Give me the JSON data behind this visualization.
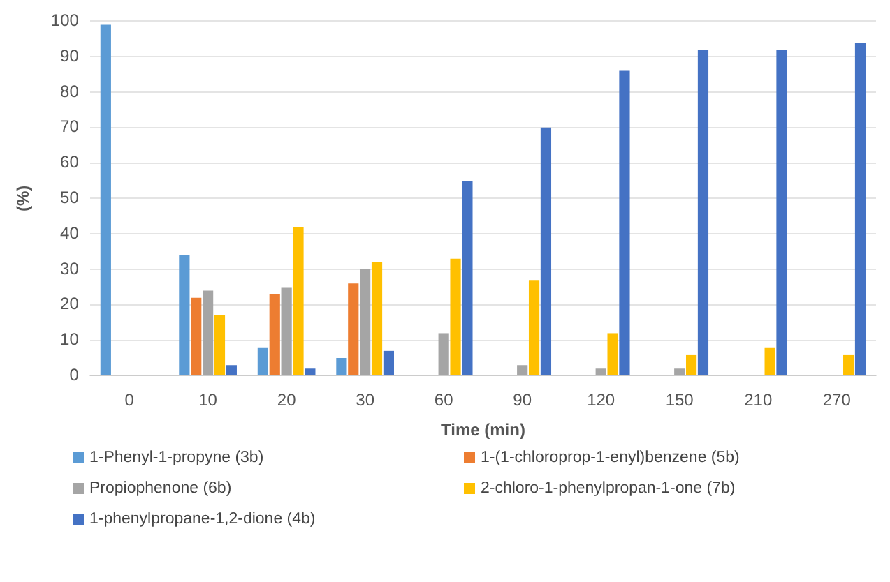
{
  "chart_data": {
    "type": "bar",
    "xlabel": "Time (min)",
    "ylabel": "(%)",
    "categories": [
      "0",
      "10",
      "20",
      "30",
      "60",
      "90",
      "120",
      "150",
      "210",
      "270"
    ],
    "series": [
      {
        "name": "1-Phenyl-1-propyne (3b)",
        "color": "#5b9bd5",
        "values": [
          99,
          34,
          8,
          5,
          0,
          0,
          0,
          0,
          0,
          0
        ]
      },
      {
        "name": "1-(1-chloroprop-1-enyl)benzene (5b)",
        "color": "#ed7d31",
        "values": [
          0,
          22,
          23,
          26,
          0,
          0,
          0,
          0,
          0,
          0
        ]
      },
      {
        "name": "Propiophenone (6b)",
        "color": "#a5a5a5",
        "values": [
          0,
          24,
          25,
          30,
          12,
          3,
          2,
          2,
          0,
          0
        ]
      },
      {
        "name": "2-chloro-1-phenylpropan-1-one (7b)",
        "color": "#ffc000",
        "values": [
          0,
          17,
          42,
          32,
          33,
          27,
          12,
          6,
          8,
          6
        ]
      },
      {
        "name": "1-phenylpropane-1,2-dione (4b)",
        "color": "#4472c4",
        "values": [
          0,
          3,
          2,
          7,
          55,
          70,
          86,
          92,
          92,
          94
        ]
      }
    ],
    "ylim": [
      0,
      100
    ],
    "yticks": [
      0,
      10,
      20,
      30,
      40,
      50,
      60,
      70,
      80,
      90,
      100
    ],
    "grid": "y",
    "legend": "bottom"
  }
}
